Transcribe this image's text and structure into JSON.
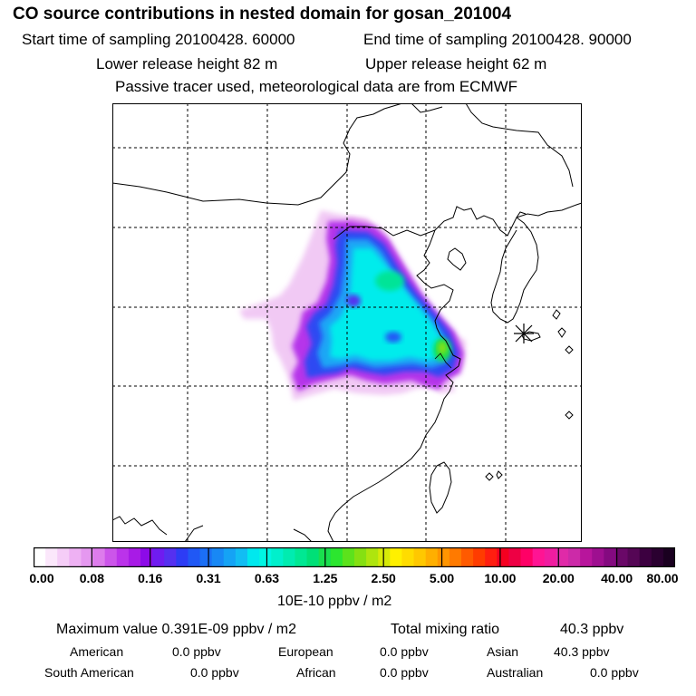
{
  "header": {
    "title": "CO  source contributions in nested domain for gosan_201004",
    "start_time": "Start time of sampling 20100428. 60000",
    "end_time": "End time of sampling 20100428. 90000",
    "lower_release": "Lower release height   82 m",
    "upper_release": "Upper release height   62 m",
    "tracer_note": "Passive tracer used, meteorological data are from ECMWF"
  },
  "colorbar": {
    "unit": "10E-10 ppbv / m2",
    "ticks": [
      "0.00",
      "0.08",
      "0.16",
      "0.31",
      "0.63",
      "1.25",
      "2.50",
      "5.00",
      "10.00",
      "20.00",
      "40.00",
      "80.00"
    ],
    "colors": [
      "#ffffff",
      "#fbe7fb",
      "#f5cdf7",
      "#eeb1f3",
      "#e598f0",
      "#dd7cec",
      "#cc55ea",
      "#bb33ea",
      "#a81be6",
      "#8c0ae8",
      "#6f1cf0",
      "#5530f0",
      "#2d3cf5",
      "#2058f5",
      "#1b6ff5",
      "#1888f5",
      "#15a3f5",
      "#12bdf3",
      "#00e8ee",
      "#00f5e3",
      "#00f0cc",
      "#00ecb0",
      "#00e893",
      "#00e077",
      "#19df4e",
      "#2ce62f",
      "#5ce21c",
      "#85e012",
      "#aee50e",
      "#d6ea08",
      "#fff000",
      "#ffdc00",
      "#ffc800",
      "#ffaf00",
      "#ff9500",
      "#ff7a00",
      "#ff5a00",
      "#ff3c00",
      "#ff1e10",
      "#f50020",
      "#ee0044",
      "#ff0066",
      "#ff1493",
      "#f01ca0",
      "#e02aa8",
      "#cc2aa8",
      "#b8159c",
      "#9e0f90",
      "#840a80",
      "#6a0868",
      "#550655",
      "#3c0040",
      "#2a0030",
      "#1a0020"
    ]
  },
  "receptor": {
    "name": "gosan",
    "marker": "asterisk-icon"
  },
  "stats": {
    "max_label": "Maximum value  0.391E-09 ppbv / m2",
    "total_label": "Total mixing ratio",
    "total_value": "40.3 ppbv",
    "regions": [
      {
        "name": "American",
        "value": "0.0 ppbv"
      },
      {
        "name": "European",
        "value": "0.0 ppbv"
      },
      {
        "name": "Asian",
        "value": "40.3 ppbv"
      },
      {
        "name": "South American",
        "value": "0.0 ppbv"
      },
      {
        "name": "African",
        "value": "0.0 ppbv"
      },
      {
        "name": "Australian",
        "value": "0.0 ppbv"
      }
    ]
  }
}
